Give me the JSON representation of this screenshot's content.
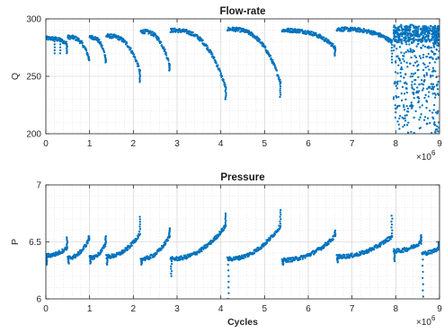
{
  "chart_data": [
    {
      "type": "scatter",
      "title": "Flow-rate",
      "xlabel": "",
      "ylabel": "Q",
      "x_exponent_label": "×10",
      "x_exponent_power": "6",
      "xlim": [
        0,
        9
      ],
      "ylim": [
        200,
        300
      ],
      "xticks": [
        0,
        1,
        2,
        3,
        4,
        5,
        6,
        7,
        8,
        9
      ],
      "yticks": [
        200,
        250,
        300
      ],
      "grid": true,
      "minor_grid": true,
      "color": "#0072BD",
      "series": [
        {
          "segments": [
            {
              "x0": 0.0,
              "x1": 0.5,
              "y_start": 283,
              "y_end": 278,
              "drop_to": 270,
              "dips": [
                0.2,
                0.33
              ]
            },
            {
              "x0": 0.5,
              "x1": 1.0,
              "y_start": 284,
              "y_end": 266,
              "drop_to": 264
            },
            {
              "x0": 1.0,
              "x1": 1.38,
              "y_start": 284,
              "y_end": 266,
              "drop_to": 262
            },
            {
              "x0": 1.38,
              "x1": 2.17,
              "y_start": 285,
              "y_end": 255,
              "drop_to": 245
            },
            {
              "x0": 2.17,
              "x1": 2.85,
              "y_start": 289,
              "y_end": 260,
              "drop_to": 255
            },
            {
              "x0": 2.85,
              "x1": 4.15,
              "y_start": 290,
              "y_end": 240,
              "drop_to": 230
            },
            {
              "x0": 4.15,
              "x1": 5.4,
              "y_start": 291,
              "y_end": 245,
              "drop_to": 232
            },
            {
              "x0": 5.4,
              "x1": 6.65,
              "y_start": 290,
              "y_end": 275,
              "drop_to": 268
            },
            {
              "x0": 6.65,
              "x1": 7.95,
              "y_start": 291,
              "y_end": 280,
              "drop_to": 262
            }
          ],
          "noisy_region": {
            "x0": 7.95,
            "x1": 9.0,
            "y_min": 200,
            "y_max": 295
          }
        }
      ]
    },
    {
      "type": "scatter",
      "title": "Pressure",
      "xlabel": "Cycles",
      "ylabel": "P",
      "x_exponent_label": "×10",
      "x_exponent_power": "6",
      "xlim": [
        0,
        9
      ],
      "ylim": [
        6,
        7
      ],
      "xticks": [
        0,
        1,
        2,
        3,
        4,
        5,
        6,
        7,
        8,
        9
      ],
      "yticks": [
        6,
        6.5,
        7
      ],
      "grid": true,
      "minor_grid": true,
      "color": "#0072BD",
      "series": [
        {
          "segments": [
            {
              "x0": 0.0,
              "x1": 0.5,
              "y_start": 6.38,
              "y_end": 6.45,
              "spike_to": 6.54,
              "dip_to": 6.3
            },
            {
              "x0": 0.5,
              "x1": 1.0,
              "y_start": 6.36,
              "y_end": 6.52,
              "spike_to": 6.55,
              "dip_to": 6.31
            },
            {
              "x0": 1.0,
              "x1": 1.38,
              "y_start": 6.36,
              "y_end": 6.48,
              "spike_to": 6.55,
              "dip_to": 6.31
            },
            {
              "x0": 1.38,
              "x1": 2.17,
              "y_start": 6.37,
              "y_end": 6.57,
              "spike_to": 6.72,
              "dip_to": 6.3
            },
            {
              "x0": 2.17,
              "x1": 2.85,
              "y_start": 6.35,
              "y_end": 6.55,
              "spike_to": 6.62,
              "dip_to": 6.3
            },
            {
              "x0": 2.85,
              "x1": 4.15,
              "y_start": 6.35,
              "y_end": 6.64,
              "spike_to": 6.75,
              "dip_to": 6.2
            },
            {
              "x0": 4.15,
              "x1": 5.4,
              "y_start": 6.35,
              "y_end": 6.64,
              "spike_to": 6.78,
              "dip_to": 6.0
            },
            {
              "x0": 5.4,
              "x1": 6.65,
              "y_start": 6.34,
              "y_end": 6.55,
              "spike_to": 6.6,
              "dip_to": 6.3
            },
            {
              "x0": 6.65,
              "x1": 7.95,
              "y_start": 6.37,
              "y_end": 6.55,
              "spike_to": 6.73,
              "dip_to": 6.32
            },
            {
              "x0": 7.95,
              "x1": 8.6,
              "y_start": 6.42,
              "y_end": 6.5,
              "spike_to": 6.56,
              "dip_to": 6.33
            },
            {
              "x0": 8.6,
              "x1": 9.0,
              "y_start": 6.4,
              "y_end": 6.45,
              "spike_to": 6.5,
              "dip_to": 6.02
            }
          ]
        }
      ]
    }
  ]
}
